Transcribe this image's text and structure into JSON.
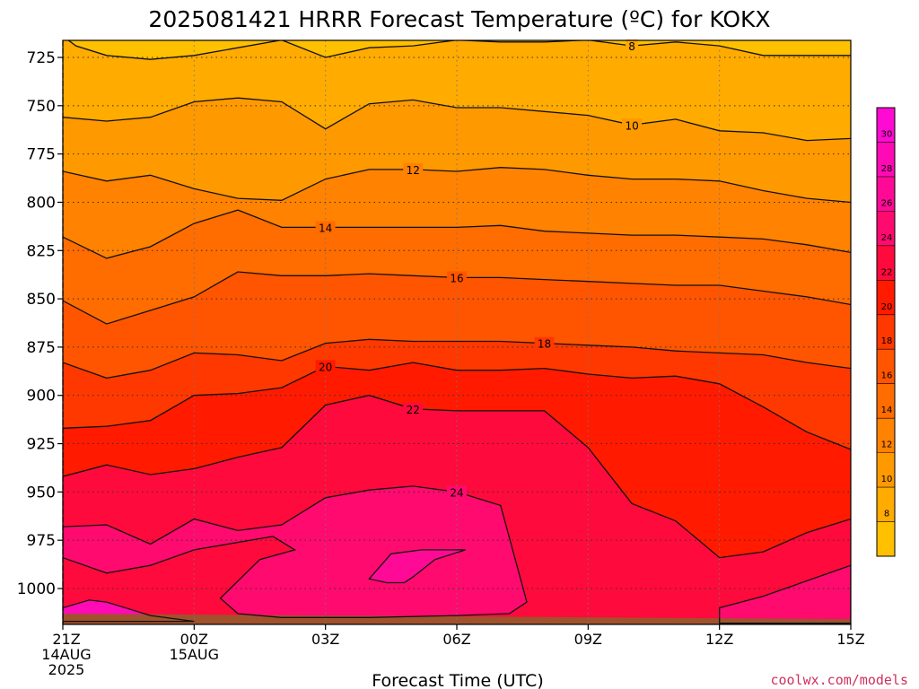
{
  "chart_data": {
    "type": "heatmap",
    "title": "2025081421 HRRR Forecast Temperature (ºC) for KOKX",
    "xlabel": "Forecast Time (UTC)",
    "ylabel": "",
    "x_ticks": [
      {
        "value": 0,
        "lines": [
          "21Z",
          "14AUG",
          "2025"
        ]
      },
      {
        "value": 3,
        "lines": [
          "00Z",
          "15AUG"
        ]
      },
      {
        "value": 6,
        "lines": [
          "03Z"
        ]
      },
      {
        "value": 9,
        "lines": [
          "06Z"
        ]
      },
      {
        "value": 12,
        "lines": [
          "09Z"
        ]
      },
      {
        "value": 15,
        "lines": [
          "12Z"
        ]
      },
      {
        "value": 18,
        "lines": [
          "15Z"
        ]
      }
    ],
    "y_ticks": [
      725,
      750,
      775,
      800,
      825,
      850,
      875,
      900,
      925,
      950,
      975,
      1000
    ],
    "xlim": [
      0,
      18
    ],
    "ylim": [
      1018,
      715
    ],
    "grid": true,
    "colorbar": {
      "labels": [
        8,
        10,
        12,
        14,
        16,
        18,
        20,
        22,
        24,
        26,
        28,
        30
      ],
      "levels": [
        6,
        8,
        10,
        12,
        14,
        16,
        18,
        20,
        22,
        24,
        26,
        28,
        30,
        32
      ],
      "colors": [
        "#ffc000",
        "#ffab00",
        "#ff9900",
        "#ff8200",
        "#ff6c00",
        "#ff5500",
        "#ff3800",
        "#ff1a00",
        "#ff0a3c",
        "#ff0a6e",
        "#ff0a96",
        "#ff0ab4",
        "#ff0ad2"
      ]
    },
    "contours": [
      {
        "level": 8,
        "label": "8",
        "label_x": 13.0,
        "points": [
          [
            0,
            714
          ],
          [
            0.3,
            719
          ],
          [
            1.0,
            724
          ],
          [
            2.0,
            726
          ],
          [
            3.0,
            724
          ],
          [
            4.0,
            720
          ],
          [
            5.0,
            716
          ],
          [
            6.0,
            725
          ],
          [
            7.0,
            720
          ],
          [
            8.0,
            719
          ],
          [
            9.0,
            716
          ],
          [
            10.0,
            717
          ],
          [
            11.0,
            717
          ],
          [
            12.0,
            716
          ],
          [
            13.0,
            719
          ],
          [
            14.0,
            717
          ],
          [
            15.0,
            719
          ],
          [
            16.0,
            724
          ],
          [
            17.0,
            724
          ],
          [
            18.0,
            724
          ]
        ]
      },
      {
        "level": 10,
        "label": "10",
        "label_x": 13.0,
        "points": [
          [
            0,
            756
          ],
          [
            1.0,
            758
          ],
          [
            2.0,
            756
          ],
          [
            3.0,
            748
          ],
          [
            4.0,
            746
          ],
          [
            5.0,
            748
          ],
          [
            6.0,
            762
          ],
          [
            7.0,
            749
          ],
          [
            8.0,
            747
          ],
          [
            9.0,
            751
          ],
          [
            10.0,
            751
          ],
          [
            11.0,
            753
          ],
          [
            12.0,
            755
          ],
          [
            13.0,
            760
          ],
          [
            14.0,
            757
          ],
          [
            15.0,
            763
          ],
          [
            16.0,
            764
          ],
          [
            17.0,
            768
          ],
          [
            18.0,
            767
          ]
        ]
      },
      {
        "level": 12,
        "label": "12",
        "label_x": 8.0,
        "points": [
          [
            0,
            784
          ],
          [
            1.0,
            789
          ],
          [
            2.0,
            786
          ],
          [
            3.0,
            793
          ],
          [
            4.0,
            798
          ],
          [
            5.0,
            799
          ],
          [
            6.0,
            788
          ],
          [
            7.0,
            783
          ],
          [
            8.0,
            783
          ],
          [
            9.0,
            784
          ],
          [
            10.0,
            782
          ],
          [
            11.0,
            783
          ],
          [
            12.0,
            786
          ],
          [
            13.0,
            788
          ],
          [
            14.0,
            788
          ],
          [
            15.0,
            789
          ],
          [
            16.0,
            794
          ],
          [
            17.0,
            798
          ],
          [
            18.0,
            800
          ]
        ]
      },
      {
        "level": 14,
        "label": "14",
        "label_x": 6.0,
        "points": [
          [
            0,
            818
          ],
          [
            1.0,
            829
          ],
          [
            2.0,
            823
          ],
          [
            3.0,
            811
          ],
          [
            4.0,
            804
          ],
          [
            5.0,
            813
          ],
          [
            6.0,
            813
          ],
          [
            7.0,
            813
          ],
          [
            8.0,
            813
          ],
          [
            9.0,
            813
          ],
          [
            10.0,
            812
          ],
          [
            11.0,
            815
          ],
          [
            12.0,
            816
          ],
          [
            13.0,
            817
          ],
          [
            14.0,
            817
          ],
          [
            15.0,
            818
          ],
          [
            16.0,
            819
          ],
          [
            17.0,
            822
          ],
          [
            18.0,
            826
          ]
        ]
      },
      {
        "level": 16,
        "label": "16",
        "label_x": 9.0,
        "points": [
          [
            0,
            851
          ],
          [
            1.0,
            863
          ],
          [
            2.0,
            856
          ],
          [
            3.0,
            849
          ],
          [
            4.0,
            836
          ],
          [
            5.0,
            838
          ],
          [
            6.0,
            838
          ],
          [
            7.0,
            837
          ],
          [
            8.0,
            838
          ],
          [
            9.0,
            839
          ],
          [
            10.0,
            839
          ],
          [
            11.0,
            840
          ],
          [
            12.0,
            841
          ],
          [
            13.0,
            842
          ],
          [
            14.0,
            843
          ],
          [
            15.0,
            843
          ],
          [
            16.0,
            846
          ],
          [
            17.0,
            849
          ],
          [
            18.0,
            853
          ]
        ]
      },
      {
        "level": 18,
        "label": "18",
        "label_x": 11.0,
        "points": [
          [
            0,
            883
          ],
          [
            1.0,
            891
          ],
          [
            2.0,
            887
          ],
          [
            3.0,
            878
          ],
          [
            4.0,
            879
          ],
          [
            5.0,
            882
          ],
          [
            6.0,
            873
          ],
          [
            7.0,
            871
          ],
          [
            8.0,
            872
          ],
          [
            9.0,
            872
          ],
          [
            10.0,
            872
          ],
          [
            11.0,
            873
          ],
          [
            12.0,
            874
          ],
          [
            13.0,
            875
          ],
          [
            14.0,
            877
          ],
          [
            15.0,
            878
          ],
          [
            16.0,
            879
          ],
          [
            17.0,
            883
          ],
          [
            18.0,
            886
          ]
        ]
      },
      {
        "level": 20,
        "label": "20",
        "label_x": 6.0,
        "points": [
          [
            0,
            917
          ],
          [
            1.0,
            916
          ],
          [
            2.0,
            913
          ],
          [
            3.0,
            900
          ],
          [
            4.0,
            899
          ],
          [
            5.0,
            896
          ],
          [
            6.0,
            885
          ],
          [
            7.0,
            887
          ],
          [
            8.0,
            883
          ],
          [
            9.0,
            887
          ],
          [
            10.0,
            887
          ],
          [
            11.0,
            886
          ],
          [
            12.0,
            889
          ],
          [
            13.0,
            891
          ],
          [
            14.0,
            890
          ],
          [
            15.0,
            894
          ],
          [
            16.0,
            906
          ],
          [
            17.0,
            919
          ],
          [
            18.0,
            928
          ]
        ]
      },
      {
        "level": 22,
        "label": "22",
        "label_x": 8.0,
        "points": [
          [
            0,
            942
          ],
          [
            1.0,
            936
          ],
          [
            2.0,
            941
          ],
          [
            3.0,
            938
          ],
          [
            4.0,
            932
          ],
          [
            5.0,
            927
          ],
          [
            6.0,
            905
          ],
          [
            7.0,
            900
          ],
          [
            8.0,
            907
          ],
          [
            9.0,
            908
          ],
          [
            10.0,
            908
          ],
          [
            11.0,
            908
          ],
          [
            12.0,
            927
          ],
          [
            13.0,
            956
          ],
          [
            14.0,
            965
          ],
          [
            15.0,
            984
          ],
          [
            16.0,
            981
          ],
          [
            17.0,
            971
          ],
          [
            18.0,
            964
          ]
        ]
      },
      {
        "level": 24,
        "label": "24",
        "label_x": 9.0,
        "points": [
          [
            0,
            968
          ],
          [
            1.0,
            967
          ],
          [
            2.0,
            977
          ],
          [
            3.0,
            964
          ],
          [
            4.0,
            970
          ],
          [
            5.0,
            967
          ],
          [
            6.0,
            953
          ],
          [
            7.0,
            949
          ],
          [
            8.0,
            947
          ],
          [
            9.0,
            950
          ],
          [
            10.0,
            957
          ],
          [
            10.6,
            1007
          ],
          [
            10.2,
            1013
          ],
          [
            9.0,
            1014
          ],
          [
            7.0,
            1015
          ],
          [
            5.0,
            1015
          ],
          [
            4.0,
            1013
          ],
          [
            3.6,
            1005
          ],
          [
            4.5,
            985
          ],
          [
            5.3,
            980
          ],
          [
            4.8,
            973
          ],
          [
            3.0,
            980
          ],
          [
            2.0,
            988
          ],
          [
            1.0,
            992
          ],
          [
            0,
            984
          ]
        ]
      },
      {
        "level": 24,
        "label": "",
        "label_x": 0,
        "points": [
          [
            15,
            1010
          ],
          [
            16,
            1004
          ],
          [
            17,
            996
          ],
          [
            18,
            988
          ],
          [
            18,
            1018
          ],
          [
            15,
            1018
          ]
        ]
      },
      {
        "level": 26,
        "label": "",
        "label_x": 0,
        "points": [
          [
            7.0,
            995
          ],
          [
            7.5,
            982
          ],
          [
            8.2,
            980
          ],
          [
            9.2,
            980
          ],
          [
            8.5,
            985
          ],
          [
            8.0,
            994
          ],
          [
            7.8,
            997
          ],
          [
            7.4,
            997
          ]
        ]
      },
      {
        "level": 26,
        "label": "",
        "label_x": 0,
        "points": [
          [
            0,
            1010
          ],
          [
            0.6,
            1006
          ],
          [
            1.0,
            1007
          ],
          [
            2.0,
            1014
          ],
          [
            3.0,
            1017
          ],
          [
            0,
            1017
          ]
        ]
      }
    ],
    "fill_regions": [
      {
        "color": "#ff0ab4",
        "points": [
          [
            0,
            1010
          ],
          [
            0.6,
            1006
          ],
          [
            1.0,
            1007
          ],
          [
            2.0,
            1014
          ],
          [
            3.0,
            1017
          ],
          [
            0,
            1017
          ]
        ]
      },
      {
        "color": "#ff0a96",
        "points": [
          [
            7.0,
            995
          ],
          [
            7.5,
            982
          ],
          [
            8.2,
            980
          ],
          [
            9.2,
            980
          ],
          [
            8.5,
            985
          ],
          [
            8.0,
            994
          ],
          [
            7.8,
            997
          ],
          [
            7.4,
            997
          ]
        ]
      }
    ],
    "ground": {
      "color": "#a0522d",
      "surface_pressure": 1014
    },
    "credit": "coolwx.com/models"
  }
}
